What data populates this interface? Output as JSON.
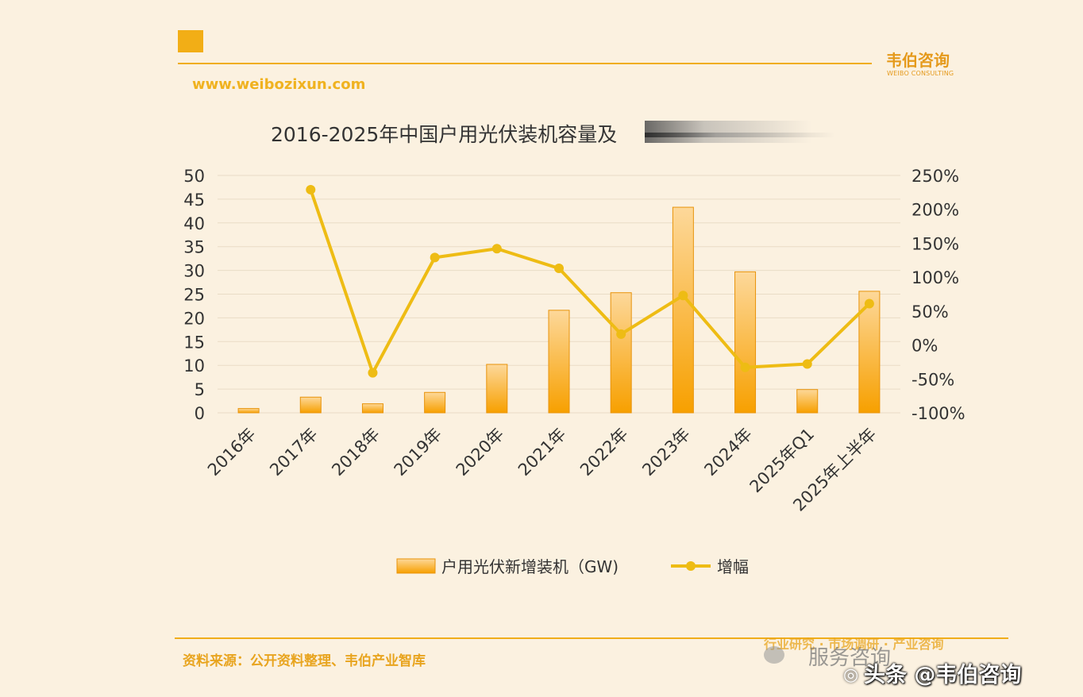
{
  "header": {
    "brand_name": "韦伯咨询",
    "brand_sub": "WEIBO CONSULTING",
    "website": "www.weibozixun.com"
  },
  "chart_data": {
    "type": "bar",
    "title": "2016-2025年中国户用光伏装机容量及",
    "categories": [
      "2016年",
      "2017年",
      "2018年",
      "2019年",
      "2020年",
      "2021年",
      "2022年",
      "2023年",
      "2024年",
      "2025年Q1",
      "2025年上半年"
    ],
    "series": [
      {
        "name": "户用光伏新增装机（GW)",
        "type": "bar",
        "axis": "left",
        "values": [
          0.9,
          3.3,
          1.9,
          4.3,
          10.2,
          21.6,
          25.3,
          43.3,
          29.7,
          4.9,
          25.6
        ]
      },
      {
        "name": "增幅",
        "type": "line",
        "axis": "right",
        "values": [
          null,
          229,
          -41,
          129,
          142,
          113,
          16,
          73,
          -33,
          -28,
          61
        ]
      }
    ],
    "left_axis": {
      "ylim": [
        0,
        50
      ],
      "ticks": [
        "0",
        "5",
        "10",
        "15",
        "20",
        "25",
        "30",
        "35",
        "40",
        "45",
        "50"
      ]
    },
    "right_axis": {
      "ylim": [
        -100,
        250
      ],
      "ticks": [
        "-100%",
        "-50%",
        "0%",
        "50%",
        "100%",
        "150%",
        "200%",
        "250%"
      ]
    },
    "grid": true,
    "legend": "bottom",
    "colors": {
      "bar_top": "#fdd89a",
      "bar_bottom": "#f7a000",
      "bar_stroke": "#e8930a",
      "line": "#eebc14"
    }
  },
  "footer": {
    "source": "资料来源：公开资料整理、韦伯产业智库",
    "services": "行业研究 · 市场调研 · 产业咨询",
    "watermark_text": "服务咨询",
    "watermark_account": "头条 @韦伯咨询"
  }
}
